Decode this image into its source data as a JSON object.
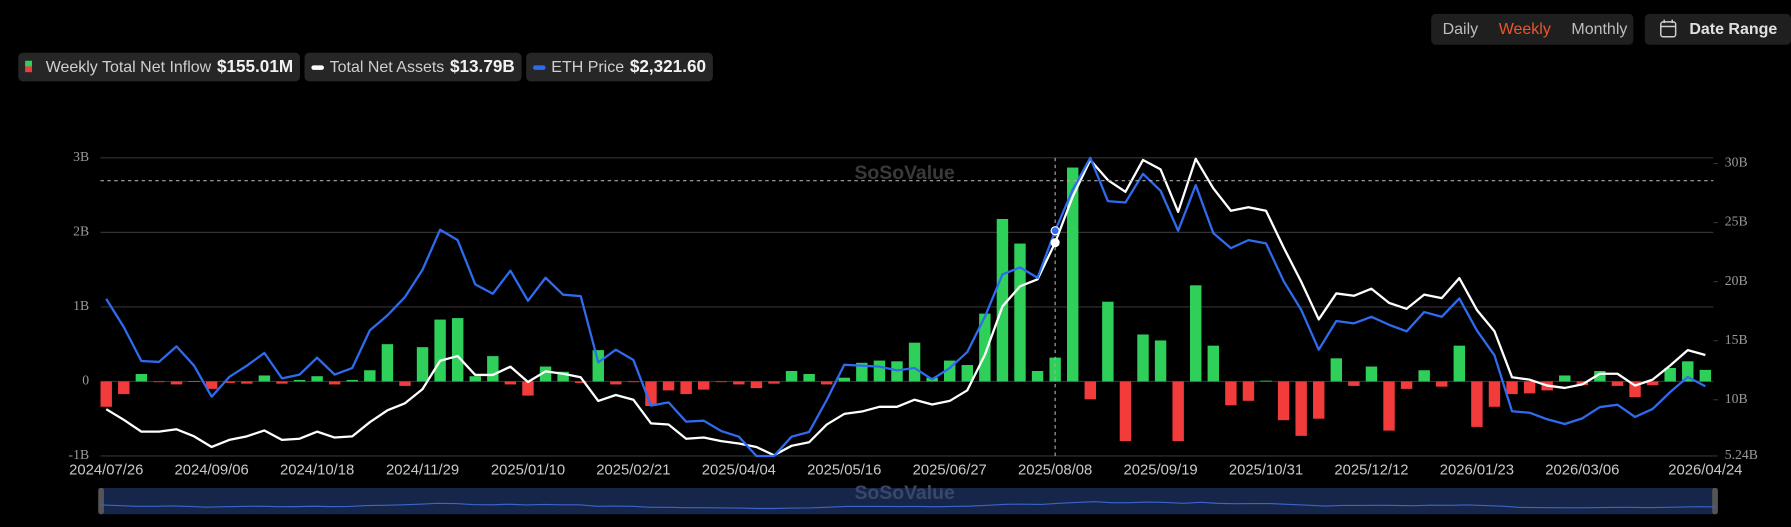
{
  "controls": {
    "periods": [
      "Daily",
      "Weekly",
      "Monthly"
    ],
    "active": 1,
    "date_range": "Date Range"
  },
  "watermark": "SoSoValue",
  "chart_data": {
    "type": "combo",
    "categories": [
      "2024/07/26",
      null,
      null,
      null,
      null,
      null,
      "2024/09/06",
      null,
      null,
      null,
      null,
      null,
      "2024/10/18",
      null,
      null,
      null,
      null,
      null,
      "2024/11/29",
      null,
      null,
      null,
      null,
      null,
      "2025/01/10",
      null,
      null,
      null,
      null,
      null,
      "2025/02/21",
      null,
      null,
      null,
      null,
      null,
      "2025/04/04",
      null,
      null,
      null,
      null,
      null,
      "2025/05/16",
      null,
      null,
      null,
      null,
      null,
      "2025/06/27",
      null,
      null,
      null,
      null,
      null,
      "2025/08/08",
      null,
      null,
      null,
      null,
      null,
      "2025/09/19",
      null,
      null,
      null,
      null,
      null,
      "2025/10/31",
      null,
      null,
      null,
      null,
      null,
      "2025/12/12",
      null,
      null,
      null,
      null,
      null,
      "2026/01/23",
      null,
      null,
      null,
      null,
      null,
      "2026/03/06",
      null,
      null,
      null,
      null,
      null,
      null,
      "2026/04/24"
    ],
    "ylim": [
      -1,
      3
    ],
    "yticks": [
      {
        "value": -1,
        "label": "-1B"
      },
      0,
      {
        "value": 1,
        "label": "1B"
      },
      {
        "value": 2,
        "label": "2B"
      },
      {
        "value": 3,
        "label": "3B"
      }
    ],
    "y2lim": [
      5.24,
      30.48
    ],
    "y2ticks": [
      {
        "value": 5.24,
        "label": "5.24B"
      },
      {
        "value": 10,
        "label": "10B"
      },
      {
        "value": 15,
        "label": "15B"
      },
      {
        "value": 20,
        "label": "20B"
      },
      {
        "value": 25,
        "label": "25B"
      },
      {
        "value": 30,
        "label": "30B"
      }
    ],
    "y3lim": [
      1580,
      4750
    ],
    "grid": true,
    "series": [
      {
        "name": "Weekly Total Net Inflow",
        "type": "bar",
        "axis": "y",
        "color": "#2fd05a",
        "negative_color": "#f23b3b",
        "latest_label": "$155.01M",
        "values": [
          -0.34,
          -0.17,
          0.1,
          -0.01,
          -0.04,
          0.0,
          -0.1,
          -0.02,
          -0.03,
          0.08,
          -0.03,
          0.02,
          0.07,
          -0.04,
          0.02,
          0.15,
          0.5,
          -0.06,
          0.46,
          0.83,
          0.85,
          0.07,
          0.34,
          -0.04,
          -0.19,
          0.2,
          0.13,
          -0.02,
          0.42,
          -0.04,
          -0.01,
          -0.33,
          -0.12,
          -0.17,
          -0.11,
          -0.01,
          -0.04,
          -0.09,
          -0.03,
          0.14,
          0.1,
          -0.04,
          0.05,
          0.25,
          0.28,
          0.27,
          0.52,
          0.05,
          0.28,
          0.22,
          0.91,
          2.18,
          1.85,
          0.14,
          0.32,
          2.87,
          -0.24,
          1.07,
          -0.8,
          0.63,
          0.55,
          -0.8,
          1.29,
          0.48,
          -0.32,
          -0.26,
          0.01,
          -0.52,
          -0.73,
          -0.5,
          0.31,
          -0.06,
          0.2,
          -0.66,
          -0.1,
          0.15,
          -0.07,
          0.48,
          -0.61,
          -0.34,
          -0.17,
          -0.16,
          -0.12,
          0.08,
          -0.05,
          0.14,
          -0.06,
          -0.21,
          -0.05,
          0.18,
          0.27,
          0.15501
        ]
      },
      {
        "name": "Total Net Assets",
        "type": "line",
        "axis": "y2",
        "color": "#ffffff",
        "latest_label": "$13.79B",
        "values": [
          9.2,
          8.3,
          7.3,
          7.3,
          7.5,
          6.9,
          6.0,
          6.6,
          6.9,
          7.4,
          6.6,
          6.7,
          7.3,
          6.8,
          6.9,
          8.1,
          9.1,
          9.7,
          10.9,
          13.3,
          13.7,
          12.1,
          12.1,
          12.8,
          11.5,
          12.4,
          12.2,
          11.9,
          9.9,
          10.4,
          10.0,
          8.0,
          7.9,
          6.7,
          6.8,
          6.5,
          6.3,
          6.0,
          5.3,
          6.1,
          6.4,
          7.9,
          8.8,
          9.0,
          9.4,
          9.4,
          10.0,
          9.6,
          9.9,
          10.8,
          13.8,
          17.9,
          19.6,
          20.2,
          23.3,
          27.2,
          30.3,
          28.6,
          27.6,
          30.3,
          29.5,
          25.9,
          30.4,
          27.9,
          26.0,
          26.3,
          26.0,
          22.9,
          20.0,
          16.8,
          19.0,
          18.8,
          19.4,
          18.2,
          17.7,
          18.9,
          18.6,
          20.3,
          17.6,
          15.8,
          11.9,
          11.7,
          11.2,
          11.0,
          11.3,
          12.2,
          12.2,
          11.2,
          11.7,
          12.9,
          14.2,
          13.79
        ]
      },
      {
        "name": "ETH Price",
        "type": "line",
        "axis": "y3",
        "color": "#2f6bef",
        "latest_label": "$2,321.60",
        "values": [
          3250,
          2950,
          2590,
          2580,
          2745,
          2540,
          2210,
          2420,
          2540,
          2675,
          2405,
          2445,
          2625,
          2445,
          2515,
          2915,
          3075,
          3270,
          3560,
          3985,
          3875,
          3405,
          3305,
          3550,
          3230,
          3475,
          3295,
          3280,
          2575,
          2710,
          2600,
          2115,
          2150,
          1945,
          1955,
          1845,
          1785,
          1580,
          1580,
          1785,
          1835,
          2175,
          2550,
          2540,
          2530,
          2490,
          2515,
          2395,
          2515,
          2685,
          3060,
          3510,
          3585,
          3475,
          3975,
          4410,
          4750,
          4290,
          4275,
          4580,
          4400,
          3975,
          4460,
          3950,
          3790,
          3875,
          3840,
          3440,
          3135,
          2710,
          3015,
          2990,
          3060,
          2975,
          2905,
          3110,
          3060,
          3255,
          2915,
          2650,
          2055,
          2040,
          1970,
          1920,
          1980,
          2100,
          2125,
          1995,
          2080,
          2260,
          2420,
          2321.6
        ]
      }
    ]
  }
}
